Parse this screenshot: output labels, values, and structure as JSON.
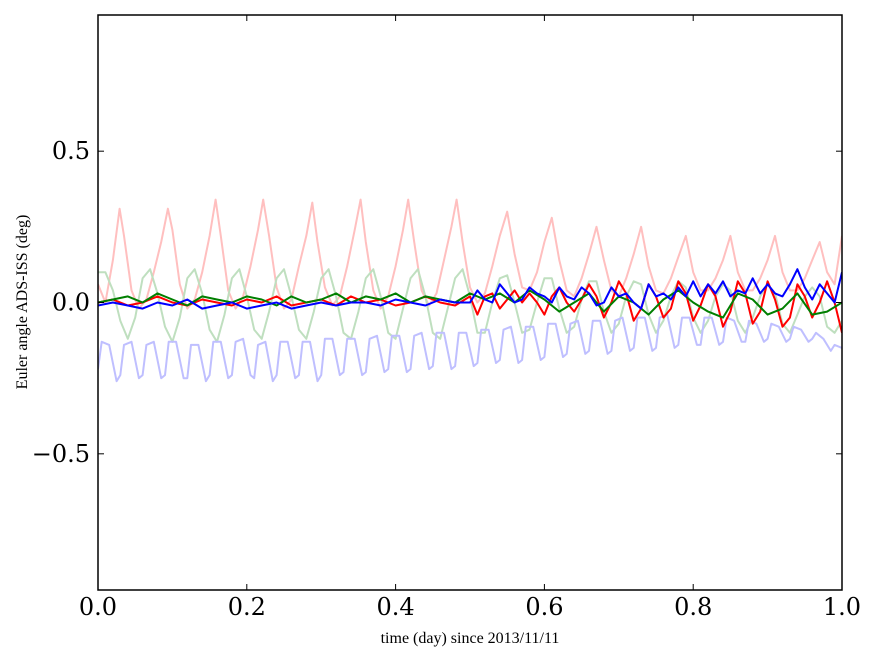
{
  "chart_data": {
    "type": "line",
    "xlabel": "time (day) since 2013/11/11",
    "ylabel": "Euler angle ADS-ISS (deg)",
    "xlim": [
      0.0,
      1.0
    ],
    "ylim": [
      -0.95,
      0.95
    ],
    "xticks": [
      0.0,
      0.2,
      0.4,
      0.6,
      0.8,
      1.0
    ],
    "xtick_labels": [
      "0.0",
      "0.2",
      "0.4",
      "0.6",
      "0.8",
      "1.0"
    ],
    "yticks": [
      -0.5,
      0.0,
      0.5
    ],
    "ytick_labels": [
      "−0.5",
      "0.0",
      "0.5"
    ],
    "grid": false,
    "series": [
      {
        "color": "#ffbfbf",
        "x": [
          0.0,
          0.01,
          0.02,
          0.029,
          0.035,
          0.045,
          0.055,
          0.065,
          0.075,
          0.085,
          0.094,
          0.1,
          0.11,
          0.12,
          0.13,
          0.14,
          0.15,
          0.158,
          0.165,
          0.175,
          0.185,
          0.195,
          0.205,
          0.215,
          0.222,
          0.23,
          0.24,
          0.25,
          0.26,
          0.27,
          0.28,
          0.288,
          0.295,
          0.305,
          0.315,
          0.325,
          0.335,
          0.345,
          0.353,
          0.36,
          0.37,
          0.38,
          0.39,
          0.4,
          0.41,
          0.417,
          0.425,
          0.435,
          0.445,
          0.455,
          0.465,
          0.475,
          0.482,
          0.49,
          0.5,
          0.51,
          0.52,
          0.53,
          0.54,
          0.55,
          0.56,
          0.57,
          0.58,
          0.59,
          0.6,
          0.61,
          0.62,
          0.63,
          0.64,
          0.65,
          0.66,
          0.67,
          0.68,
          0.69,
          0.7,
          0.71,
          0.72,
          0.73,
          0.74,
          0.75,
          0.76,
          0.77,
          0.78,
          0.79,
          0.8,
          0.81,
          0.82,
          0.83,
          0.84,
          0.85,
          0.86,
          0.87,
          0.88,
          0.89,
          0.9,
          0.91,
          0.92,
          0.93,
          0.94,
          0.95,
          0.96,
          0.97,
          0.98,
          0.99,
          1.0
        ],
        "y": [
          0.06,
          0.0,
          0.14,
          0.31,
          0.22,
          0.04,
          -0.02,
          0.01,
          0.1,
          0.2,
          0.31,
          0.24,
          0.06,
          -0.02,
          0.01,
          0.1,
          0.22,
          0.34,
          0.22,
          0.04,
          -0.02,
          0.02,
          0.12,
          0.24,
          0.34,
          0.22,
          0.05,
          -0.02,
          0.01,
          0.12,
          0.22,
          0.33,
          0.2,
          0.05,
          -0.01,
          0.02,
          0.12,
          0.24,
          0.34,
          0.2,
          0.04,
          -0.02,
          0.02,
          0.12,
          0.24,
          0.34,
          0.2,
          0.04,
          -0.01,
          0.03,
          0.14,
          0.25,
          0.34,
          0.2,
          0.05,
          0.0,
          0.03,
          0.12,
          0.22,
          0.3,
          0.16,
          0.05,
          0.04,
          0.1,
          0.2,
          0.28,
          0.14,
          0.04,
          0.02,
          0.08,
          0.16,
          0.25,
          0.14,
          0.04,
          0.02,
          0.08,
          0.16,
          0.25,
          0.12,
          0.04,
          0.03,
          0.08,
          0.15,
          0.22,
          0.1,
          0.04,
          0.04,
          0.08,
          0.14,
          0.22,
          0.1,
          0.04,
          0.04,
          0.08,
          0.14,
          0.22,
          0.1,
          0.04,
          0.04,
          0.08,
          0.14,
          0.2,
          0.1,
          0.06,
          0.22
        ]
      },
      {
        "color": "#bfdfbf",
        "x": [
          0.0,
          0.01,
          0.02,
          0.03,
          0.04,
          0.05,
          0.06,
          0.07,
          0.08,
          0.09,
          0.1,
          0.11,
          0.12,
          0.13,
          0.14,
          0.15,
          0.16,
          0.17,
          0.18,
          0.19,
          0.2,
          0.21,
          0.22,
          0.23,
          0.24,
          0.25,
          0.26,
          0.27,
          0.28,
          0.29,
          0.3,
          0.31,
          0.32,
          0.33,
          0.34,
          0.35,
          0.36,
          0.37,
          0.38,
          0.39,
          0.4,
          0.41,
          0.42,
          0.43,
          0.44,
          0.45,
          0.46,
          0.47,
          0.48,
          0.49,
          0.5,
          0.51,
          0.52,
          0.53,
          0.54,
          0.55,
          0.56,
          0.57,
          0.58,
          0.59,
          0.6,
          0.61,
          0.62,
          0.63,
          0.64,
          0.65,
          0.66,
          0.67,
          0.68,
          0.69,
          0.7,
          0.71,
          0.72,
          0.73,
          0.74,
          0.75,
          0.76,
          0.77,
          0.78,
          0.79,
          0.8,
          0.81,
          0.82,
          0.83,
          0.84,
          0.85,
          0.86,
          0.87,
          0.88,
          0.89,
          0.9,
          0.91,
          0.92,
          0.93,
          0.94,
          0.95,
          0.96,
          0.97,
          0.98,
          0.99,
          1.0
        ],
        "y": [
          0.1,
          0.1,
          0.04,
          -0.06,
          -0.12,
          -0.05,
          0.08,
          0.11,
          0.03,
          -0.08,
          -0.13,
          -0.05,
          0.08,
          0.11,
          0.03,
          -0.09,
          -0.13,
          -0.04,
          0.08,
          0.11,
          0.02,
          -0.09,
          -0.12,
          -0.03,
          0.08,
          0.11,
          0.02,
          -0.09,
          -0.12,
          -0.03,
          0.08,
          0.11,
          0.02,
          -0.1,
          -0.12,
          -0.03,
          0.08,
          0.11,
          0.02,
          -0.1,
          -0.12,
          -0.02,
          0.08,
          0.11,
          0.02,
          -0.1,
          -0.12,
          -0.02,
          0.08,
          0.11,
          0.02,
          -0.1,
          -0.1,
          0.0,
          0.08,
          0.09,
          0.0,
          -0.1,
          -0.09,
          0.0,
          0.08,
          0.08,
          -0.02,
          -0.1,
          -0.08,
          0.01,
          0.07,
          0.07,
          -0.03,
          -0.1,
          -0.07,
          0.02,
          0.07,
          0.06,
          -0.04,
          -0.1,
          -0.06,
          0.02,
          0.07,
          0.05,
          -0.05,
          -0.1,
          -0.06,
          0.02,
          0.06,
          0.04,
          -0.06,
          -0.1,
          -0.05,
          0.02,
          0.06,
          0.03,
          -0.07,
          -0.1,
          -0.04,
          0.02,
          0.05,
          0.02,
          -0.08,
          -0.1,
          -0.06
        ]
      },
      {
        "color": "#bfbfff",
        "x": [
          0.0,
          0.005,
          0.015,
          0.025,
          0.03,
          0.035,
          0.045,
          0.055,
          0.06,
          0.065,
          0.075,
          0.085,
          0.09,
          0.095,
          0.105,
          0.115,
          0.12,
          0.125,
          0.135,
          0.145,
          0.15,
          0.155,
          0.165,
          0.175,
          0.18,
          0.185,
          0.195,
          0.205,
          0.21,
          0.215,
          0.225,
          0.235,
          0.24,
          0.245,
          0.255,
          0.265,
          0.27,
          0.275,
          0.285,
          0.295,
          0.3,
          0.305,
          0.315,
          0.325,
          0.33,
          0.335,
          0.345,
          0.355,
          0.36,
          0.365,
          0.375,
          0.385,
          0.39,
          0.395,
          0.405,
          0.415,
          0.42,
          0.425,
          0.435,
          0.445,
          0.45,
          0.455,
          0.465,
          0.475,
          0.48,
          0.485,
          0.495,
          0.505,
          0.51,
          0.515,
          0.525,
          0.535,
          0.54,
          0.545,
          0.555,
          0.565,
          0.57,
          0.575,
          0.585,
          0.595,
          0.6,
          0.605,
          0.615,
          0.625,
          0.63,
          0.635,
          0.645,
          0.655,
          0.66,
          0.665,
          0.675,
          0.685,
          0.69,
          0.695,
          0.705,
          0.715,
          0.72,
          0.725,
          0.735,
          0.745,
          0.75,
          0.755,
          0.765,
          0.775,
          0.78,
          0.785,
          0.795,
          0.805,
          0.81,
          0.815,
          0.825,
          0.835,
          0.84,
          0.845,
          0.855,
          0.865,
          0.87,
          0.875,
          0.885,
          0.895,
          0.9,
          0.905,
          0.915,
          0.925,
          0.93,
          0.935,
          0.945,
          0.955,
          0.96,
          0.965,
          0.975,
          0.985,
          0.99,
          1.0
        ],
        "y": [
          -0.22,
          -0.13,
          -0.14,
          -0.26,
          -0.24,
          -0.14,
          -0.13,
          -0.25,
          -0.24,
          -0.14,
          -0.13,
          -0.25,
          -0.24,
          -0.13,
          -0.13,
          -0.25,
          -0.25,
          -0.14,
          -0.14,
          -0.26,
          -0.24,
          -0.13,
          -0.13,
          -0.25,
          -0.24,
          -0.13,
          -0.12,
          -0.24,
          -0.25,
          -0.14,
          -0.13,
          -0.26,
          -0.24,
          -0.13,
          -0.13,
          -0.25,
          -0.24,
          -0.13,
          -0.13,
          -0.26,
          -0.24,
          -0.12,
          -0.12,
          -0.24,
          -0.23,
          -0.12,
          -0.12,
          -0.24,
          -0.23,
          -0.12,
          -0.11,
          -0.23,
          -0.22,
          -0.11,
          -0.11,
          -0.23,
          -0.22,
          -0.11,
          -0.1,
          -0.22,
          -0.21,
          -0.1,
          -0.1,
          -0.22,
          -0.21,
          -0.1,
          -0.1,
          -0.21,
          -0.2,
          -0.09,
          -0.09,
          -0.2,
          -0.19,
          -0.09,
          -0.08,
          -0.2,
          -0.19,
          -0.08,
          -0.08,
          -0.19,
          -0.18,
          -0.07,
          -0.07,
          -0.18,
          -0.17,
          -0.07,
          -0.06,
          -0.17,
          -0.16,
          -0.06,
          -0.06,
          -0.17,
          -0.16,
          -0.06,
          -0.05,
          -0.16,
          -0.15,
          -0.05,
          -0.05,
          -0.16,
          -0.15,
          -0.05,
          -0.04,
          -0.15,
          -0.14,
          -0.05,
          -0.05,
          -0.14,
          -0.14,
          -0.05,
          -0.05,
          -0.14,
          -0.13,
          -0.05,
          -0.06,
          -0.13,
          -0.13,
          -0.06,
          -0.07,
          -0.13,
          -0.12,
          -0.07,
          -0.08,
          -0.13,
          -0.12,
          -0.08,
          -0.09,
          -0.13,
          -0.12,
          -0.1,
          -0.12,
          -0.16,
          -0.14,
          -0.15
        ]
      },
      {
        "color": "#ff0000",
        "x": [
          0.0,
          0.02,
          0.04,
          0.06,
          0.08,
          0.1,
          0.12,
          0.14,
          0.16,
          0.18,
          0.2,
          0.22,
          0.24,
          0.26,
          0.28,
          0.3,
          0.32,
          0.34,
          0.36,
          0.38,
          0.4,
          0.42,
          0.44,
          0.46,
          0.48,
          0.5,
          0.51,
          0.52,
          0.53,
          0.54,
          0.55,
          0.56,
          0.57,
          0.58,
          0.59,
          0.6,
          0.61,
          0.62,
          0.63,
          0.64,
          0.65,
          0.66,
          0.67,
          0.68,
          0.69,
          0.7,
          0.71,
          0.72,
          0.73,
          0.74,
          0.75,
          0.76,
          0.77,
          0.78,
          0.79,
          0.8,
          0.81,
          0.82,
          0.83,
          0.84,
          0.85,
          0.86,
          0.87,
          0.88,
          0.89,
          0.9,
          0.91,
          0.92,
          0.93,
          0.94,
          0.95,
          0.96,
          0.97,
          0.98,
          0.99,
          1.0
        ],
        "y": [
          0.0,
          0.01,
          -0.01,
          0.0,
          0.02,
          0.0,
          -0.01,
          0.01,
          0.0,
          -0.01,
          0.01,
          0.0,
          0.02,
          -0.01,
          0.0,
          0.01,
          -0.01,
          0.02,
          0.0,
          0.01,
          -0.01,
          0.0,
          0.02,
          0.0,
          -0.01,
          0.02,
          -0.04,
          0.02,
          0.03,
          -0.02,
          0.01,
          0.04,
          0.0,
          0.03,
          0.0,
          -0.04,
          0.02,
          0.05,
          0.0,
          -0.03,
          0.01,
          0.06,
          0.02,
          -0.05,
          0.0,
          0.07,
          0.03,
          -0.06,
          -0.02,
          0.06,
          0.02,
          -0.05,
          -0.02,
          0.07,
          0.03,
          -0.06,
          -0.01,
          0.06,
          0.02,
          -0.08,
          -0.03,
          0.07,
          0.03,
          -0.07,
          -0.03,
          0.07,
          0.01,
          -0.08,
          -0.05,
          0.06,
          0.02,
          -0.05,
          0.0,
          0.07,
          0.0,
          -0.1
        ]
      },
      {
        "color": "#007f00",
        "x": [
          0.0,
          0.02,
          0.04,
          0.06,
          0.08,
          0.1,
          0.12,
          0.14,
          0.16,
          0.18,
          0.2,
          0.22,
          0.24,
          0.26,
          0.28,
          0.3,
          0.32,
          0.34,
          0.36,
          0.38,
          0.4,
          0.42,
          0.44,
          0.46,
          0.48,
          0.5,
          0.52,
          0.54,
          0.56,
          0.58,
          0.6,
          0.62,
          0.64,
          0.66,
          0.68,
          0.7,
          0.72,
          0.74,
          0.76,
          0.78,
          0.8,
          0.82,
          0.84,
          0.86,
          0.88,
          0.9,
          0.92,
          0.94,
          0.96,
          0.98,
          1.0
        ],
        "y": [
          0.0,
          0.01,
          0.02,
          0.0,
          0.03,
          0.01,
          -0.01,
          0.02,
          0.01,
          0.0,
          0.02,
          0.01,
          -0.01,
          0.02,
          0.0,
          0.01,
          0.03,
          0.0,
          0.02,
          0.01,
          0.03,
          0.0,
          0.02,
          0.01,
          0.0,
          0.03,
          0.01,
          0.03,
          0.0,
          0.04,
          0.01,
          -0.03,
          0.0,
          0.03,
          -0.03,
          0.02,
          0.0,
          -0.04,
          0.01,
          0.04,
          0.0,
          -0.03,
          -0.05,
          0.03,
          0.01,
          -0.04,
          -0.02,
          0.03,
          -0.04,
          -0.03,
          0.0
        ]
      },
      {
        "color": "#0000ff",
        "x": [
          0.0,
          0.02,
          0.04,
          0.06,
          0.08,
          0.1,
          0.12,
          0.14,
          0.16,
          0.18,
          0.2,
          0.22,
          0.24,
          0.26,
          0.28,
          0.3,
          0.32,
          0.34,
          0.36,
          0.38,
          0.4,
          0.42,
          0.44,
          0.46,
          0.48,
          0.5,
          0.51,
          0.52,
          0.53,
          0.54,
          0.55,
          0.56,
          0.57,
          0.58,
          0.59,
          0.6,
          0.61,
          0.62,
          0.63,
          0.64,
          0.65,
          0.66,
          0.67,
          0.68,
          0.69,
          0.7,
          0.71,
          0.72,
          0.73,
          0.74,
          0.75,
          0.76,
          0.77,
          0.78,
          0.79,
          0.8,
          0.81,
          0.82,
          0.83,
          0.84,
          0.85,
          0.86,
          0.87,
          0.88,
          0.89,
          0.9,
          0.91,
          0.92,
          0.93,
          0.94,
          0.95,
          0.96,
          0.97,
          0.98,
          0.99,
          1.0
        ],
        "y": [
          -0.01,
          0.0,
          -0.01,
          -0.02,
          0.0,
          -0.01,
          0.01,
          -0.02,
          -0.01,
          0.0,
          -0.02,
          -0.01,
          0.0,
          -0.02,
          -0.01,
          0.0,
          -0.01,
          0.0,
          0.0,
          -0.01,
          0.01,
          0.0,
          -0.01,
          0.01,
          0.0,
          0.0,
          0.04,
          0.01,
          0.0,
          0.06,
          0.03,
          0.0,
          0.01,
          0.05,
          0.03,
          0.02,
          0.0,
          0.05,
          0.02,
          0.01,
          0.05,
          0.03,
          -0.01,
          0.0,
          0.05,
          0.02,
          0.03,
          0.0,
          -0.02,
          0.06,
          0.02,
          0.03,
          0.01,
          0.05,
          0.02,
          0.07,
          0.02,
          0.06,
          0.03,
          0.07,
          0.02,
          0.04,
          0.03,
          0.08,
          0.03,
          0.06,
          0.03,
          0.02,
          0.06,
          0.11,
          0.05,
          0.01,
          0.06,
          0.03,
          0.0,
          0.1
        ]
      }
    ]
  }
}
